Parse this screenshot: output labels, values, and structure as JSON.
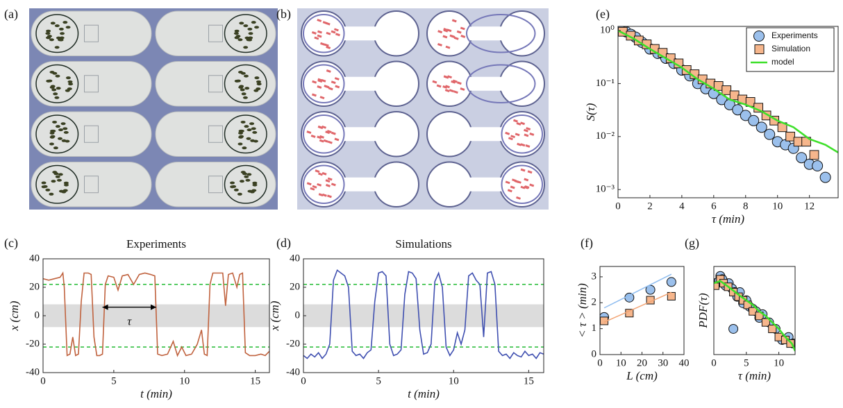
{
  "chart_data": [
    {
      "type": "image",
      "label": "(a)"
    },
    {
      "type": "image",
      "label": "(b)"
    },
    {
      "type": "line",
      "label": "(c)",
      "title": "Experiments",
      "xlabel": "t (min)",
      "ylabel": "x (cm)",
      "xlim": [
        0,
        16
      ],
      "xticks": [
        0,
        5,
        10,
        15
      ],
      "ylim": [
        -40,
        40
      ],
      "yticks": [
        -40,
        -20,
        0,
        20,
        40
      ],
      "band": [
        -8,
        8
      ],
      "hlines": [
        -22,
        22
      ],
      "color": "#c0623e",
      "annotation": {
        "text": "τ",
        "x": [
          4.2,
          8.0
        ],
        "y": 6
      },
      "x": [
        0,
        0.4,
        0.8,
        1.2,
        1.4,
        1.5,
        1.7,
        1.9,
        2.1,
        2.3,
        2.5,
        2.7,
        2.9,
        3.2,
        3.4,
        3.6,
        3.8,
        4.0,
        4.2,
        4.4,
        4.6,
        5.0,
        5.3,
        5.6,
        6.0,
        6.4,
        6.8,
        7.2,
        7.6,
        7.9,
        8.1,
        8.4,
        8.8,
        9.2,
        9.5,
        9.8,
        10.1,
        10.5,
        10.9,
        11.2,
        11.4,
        11.6,
        11.8,
        12.0,
        12.4,
        12.7,
        12.9,
        13.1,
        13.4,
        13.7,
        13.9,
        14.1,
        14.3,
        14.6,
        15.0,
        15.4,
        15.7,
        16.0
      ],
      "values": [
        26,
        25,
        26,
        27,
        30,
        20,
        -28,
        -27,
        -15,
        -28,
        -27,
        10,
        30,
        30,
        29,
        -15,
        -28,
        -28,
        -27,
        22,
        28,
        27,
        18,
        28,
        29,
        22,
        29,
        30,
        29,
        28,
        -27,
        -28,
        -27,
        -18,
        -28,
        -22,
        -28,
        -27,
        -20,
        -10,
        -27,
        -28,
        22,
        30,
        30,
        30,
        7,
        29,
        30,
        20,
        29,
        30,
        -26,
        -28,
        -28,
        -27,
        -28,
        -25
      ]
    },
    {
      "type": "line",
      "label": "(d)",
      "title": "Simulations",
      "xlabel": "t (min)",
      "ylabel": "x (cm)",
      "xlim": [
        0,
        16
      ],
      "xticks": [
        0,
        5,
        10,
        15
      ],
      "ylim": [
        -40,
        40
      ],
      "yticks": [
        -40,
        -20,
        0,
        20,
        40
      ],
      "band": [
        -8,
        8
      ],
      "hlines": [
        -22,
        22
      ],
      "color": "#3f4fb0",
      "x": [
        0,
        0.25,
        0.5,
        0.75,
        1,
        1.25,
        1.5,
        1.75,
        2,
        2.25,
        2.5,
        2.75,
        3,
        3.25,
        3.5,
        3.75,
        4,
        4.25,
        4.5,
        4.75,
        5,
        5.25,
        5.5,
        5.75,
        6,
        6.25,
        6.5,
        6.75,
        7,
        7.25,
        7.5,
        7.75,
        8,
        8.25,
        8.5,
        8.75,
        9,
        9.25,
        9.5,
        9.75,
        10,
        10.25,
        10.5,
        10.75,
        11,
        11.25,
        11.5,
        11.75,
        12,
        12.25,
        12.5,
        12.75,
        13,
        13.25,
        13.5,
        13.75,
        14,
        14.25,
        14.5,
        14.75,
        15,
        15.25,
        15.5,
        15.75,
        16
      ],
      "values": [
        -28,
        -30,
        -27,
        -29,
        -26,
        -30,
        -27,
        -20,
        25,
        32,
        30,
        28,
        20,
        -25,
        -28,
        -27,
        -30,
        -26,
        -24,
        10,
        30,
        31,
        28,
        -20,
        -28,
        -27,
        -24,
        15,
        31,
        30,
        26,
        -10,
        -27,
        -26,
        -20,
        24,
        30,
        20,
        -22,
        -28,
        -24,
        -12,
        -20,
        -10,
        28,
        30,
        25,
        22,
        -15,
        30,
        31,
        22,
        -25,
        -28,
        -27,
        -30,
        -26,
        -28,
        -29,
        -25,
        -28,
        -27,
        -30,
        -26,
        -27
      ]
    },
    {
      "type": "scatter",
      "label": "(e)",
      "xlabel": "τ (min)",
      "ylabel": "S(τ)",
      "ylog": true,
      "legend": "upper right",
      "xlim": [
        0,
        13.8
      ],
      "xticks": [
        0,
        2,
        4,
        6,
        8,
        10,
        12
      ],
      "ylim": [
        0.0007,
        1.2
      ],
      "yticks": [
        {
          "value": 0.001,
          "label": "10⁻³"
        },
        {
          "value": 0.01,
          "label": "10⁻²"
        },
        {
          "value": 0.1,
          "label": "10⁻¹"
        },
        {
          "value": 1,
          "label": "10⁰"
        }
      ],
      "series": [
        {
          "name": "Experiments",
          "marker": "circle",
          "color": "#9bc0ec",
          "x": [
            0.2,
            0.5,
            0.8,
            1.1,
            1.5,
            2.0,
            2.5,
            3.0,
            3.5,
            4.0,
            4.5,
            5.0,
            5.5,
            6.0,
            6.5,
            7.0,
            7.5,
            8.0,
            8.5,
            9.0,
            9.5,
            10.0,
            10.5,
            11.0,
            11.5,
            12.0,
            12.5,
            13.0
          ],
          "values": [
            1.0,
            0.95,
            0.85,
            0.75,
            0.6,
            0.45,
            0.37,
            0.3,
            0.24,
            0.18,
            0.14,
            0.1,
            0.08,
            0.065,
            0.05,
            0.04,
            0.032,
            0.025,
            0.02,
            0.015,
            0.011,
            0.008,
            0.007,
            0.006,
            0.004,
            0.003,
            0.0028,
            0.0017
          ]
        },
        {
          "name": "Simulation",
          "marker": "square",
          "color": "#f6b68c",
          "x": [
            0.3,
            0.8,
            1.3,
            1.8,
            2.3,
            2.8,
            3.3,
            3.8,
            4.3,
            4.8,
            5.3,
            5.8,
            6.3,
            6.8,
            7.3,
            7.8,
            8.3,
            8.8,
            9.3,
            9.8,
            10.3,
            10.8,
            11.3,
            11.8,
            12.3
          ],
          "values": [
            0.95,
            0.8,
            0.65,
            0.55,
            0.45,
            0.38,
            0.3,
            0.24,
            0.18,
            0.15,
            0.12,
            0.1,
            0.09,
            0.075,
            0.06,
            0.05,
            0.045,
            0.035,
            0.025,
            0.02,
            0.015,
            0.01,
            0.008,
            0.008,
            0.0045
          ]
        },
        {
          "name": "model",
          "marker": "line",
          "color": "#3ee02a",
          "x": [
            0,
            1,
            2,
            3,
            4,
            5,
            6,
            7,
            8,
            9,
            10,
            11,
            12,
            13,
            13.8
          ],
          "values": [
            1,
            0.7,
            0.45,
            0.3,
            0.2,
            0.12,
            0.08,
            0.05,
            0.04,
            0.03,
            0.02,
            0.015,
            0.009,
            0.007,
            0.005
          ]
        }
      ]
    },
    {
      "type": "scatter",
      "label": "(f)",
      "xlabel": "L (cm)",
      "ylabel": "< τ > (min)",
      "xlim": [
        0,
        40
      ],
      "xticks": [
        0,
        10,
        20,
        30,
        40
      ],
      "ylim": [
        0,
        3.4
      ],
      "yticks": [
        0,
        1,
        2,
        3
      ],
      "series": [
        {
          "marker": "line",
          "color": "#8fbdf0",
          "x": [
            2,
            34
          ],
          "values": [
            1.8,
            3.1
          ]
        },
        {
          "marker": "line",
          "color": "#f2a474",
          "x": [
            2,
            34
          ],
          "values": [
            1.25,
            2.4
          ]
        },
        {
          "marker": "circle",
          "color": "#9bc0ec",
          "x": [
            2,
            14,
            24,
            34
          ],
          "values": [
            1.45,
            2.2,
            2.5,
            2.8
          ]
        },
        {
          "marker": "square",
          "color": "#f6b68c",
          "x": [
            2,
            14,
            24,
            34
          ],
          "values": [
            1.3,
            1.6,
            2.1,
            2.25
          ]
        }
      ]
    },
    {
      "type": "scatter",
      "label": "(g)",
      "xlabel": "τ (min)",
      "ylabel": "PDF(τ)",
      "ylog": true,
      "xlim": [
        0,
        12.5
      ],
      "xticks": [
        0,
        5,
        10
      ],
      "ylim": [
        0.004,
        1
      ],
      "series": [
        {
          "marker": "circle",
          "color": "#9bc0ec",
          "x": [
            0.2,
            0.8,
            1.0,
            1.3,
            1.8,
            2.3,
            2.8,
            3.2,
            3.6,
            4.0,
            4.5,
            5.0,
            5.5,
            6.0,
            6.5,
            7.0,
            7.5,
            3.0,
            8.5,
            9.5,
            10.5,
            11.5,
            12.2
          ],
          "values": [
            0.35,
            0.4,
            0.55,
            0.45,
            0.3,
            0.35,
            0.25,
            0.2,
            0.15,
            0.2,
            0.1,
            0.12,
            0.08,
            0.07,
            0.06,
            0.04,
            0.05,
            0.02,
            0.03,
            0.02,
            0.01,
            0.012,
            0.008
          ]
        },
        {
          "marker": "square",
          "color": "#f6b68c",
          "x": [
            0.2,
            1.0,
            1.5,
            2.2,
            3.0,
            3.8,
            4.5,
            5.2,
            6.0,
            7.0,
            8.0,
            9.0,
            10.0,
            11.0,
            11.8
          ],
          "values": [
            0.3,
            0.45,
            0.35,
            0.28,
            0.2,
            0.15,
            0.12,
            0.09,
            0.06,
            0.045,
            0.03,
            0.02,
            0.012,
            0.01,
            0.008
          ]
        },
        {
          "marker": "line",
          "color": "#3ee02a",
          "x": [
            0,
            1,
            2,
            3,
            4,
            5,
            6,
            7,
            8,
            9,
            10,
            11,
            12,
            12.5
          ],
          "values": [
            0.35,
            0.4,
            0.3,
            0.22,
            0.16,
            0.12,
            0.09,
            0.06,
            0.045,
            0.03,
            0.02,
            0.012,
            0.008,
            0.005
          ]
        }
      ]
    }
  ]
}
